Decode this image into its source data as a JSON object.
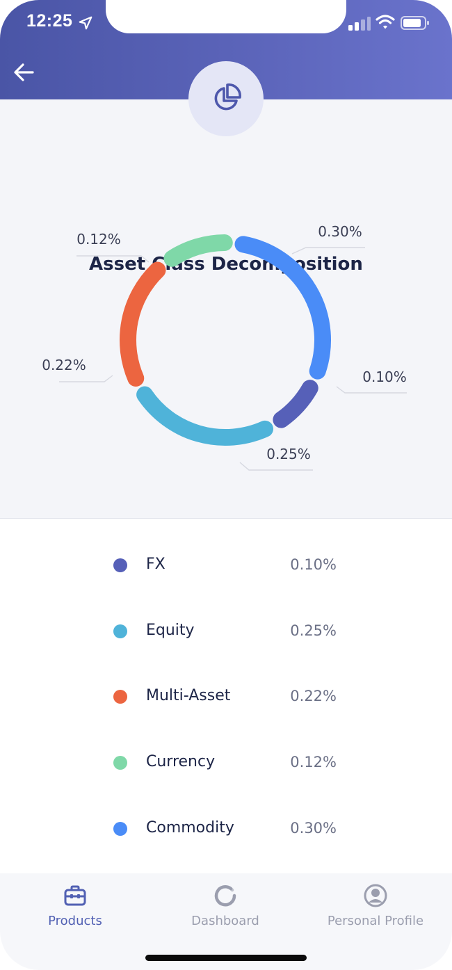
{
  "status_bar": {
    "time": "12:25"
  },
  "header": {
    "back_icon": "arrow-left-icon",
    "badge_icon": "pie-chart-icon"
  },
  "page": {
    "title": "Asset Class Decomposition"
  },
  "colors": {
    "header_start": "#4a55a6",
    "header_end": "#6a73cc",
    "fx": "#5660b8",
    "equity": "#4fb3d9",
    "multi_asset": "#ec6540",
    "currency": "#7fd8a8",
    "commodity": "#4a8cf7"
  },
  "chart_data": {
    "type": "pie",
    "title": "Asset Class Decomposition",
    "categories": [
      "FX",
      "Equity",
      "Multi-Asset",
      "Currency",
      "Commodity"
    ],
    "values": [
      0.1,
      0.25,
      0.22,
      0.12,
      0.3
    ],
    "value_labels": [
      "0.10%",
      "0.25%",
      "0.22%",
      "0.12%",
      "0.30%"
    ],
    "colors": [
      "#5660b8",
      "#4fb3d9",
      "#ec6540",
      "#7fd8a8",
      "#4a8cf7"
    ],
    "style": "donut"
  },
  "legend": {
    "items": [
      {
        "label": "FX",
        "value": "0.10%",
        "color": "#5660b8"
      },
      {
        "label": "Equity",
        "value": "0.25%",
        "color": "#4fb3d9"
      },
      {
        "label": "Multi-Asset",
        "value": "0.22%",
        "color": "#ec6540"
      },
      {
        "label": "Currency",
        "value": "0.12%",
        "color": "#7fd8a8"
      },
      {
        "label": "Commodity",
        "value": "0.30%",
        "color": "#4a8cf7"
      }
    ]
  },
  "tabbar": {
    "tabs": [
      {
        "label": "Products",
        "icon": "briefcase-icon",
        "active": true
      },
      {
        "label": "Dashboard",
        "icon": "refresh-chart-icon",
        "active": false
      },
      {
        "label": "Personal Profile",
        "icon": "user-circle-icon",
        "active": false
      }
    ]
  }
}
